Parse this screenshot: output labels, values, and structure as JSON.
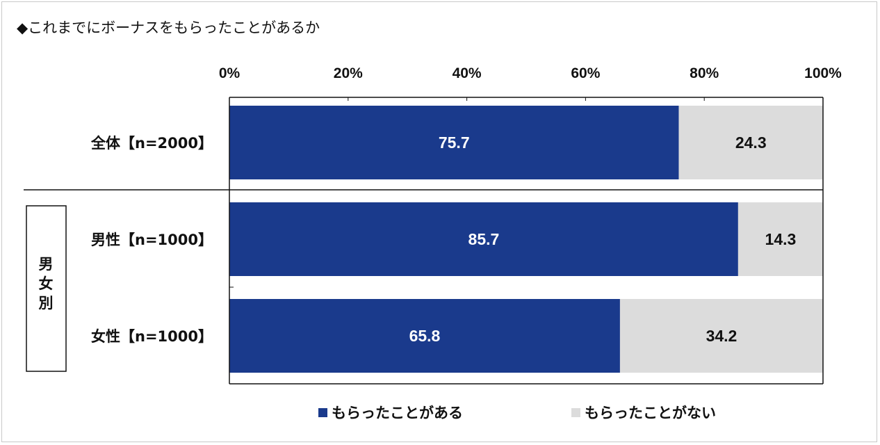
{
  "title": "◆これまでにボーナスをもらったことがあるか",
  "group_label": "男女別",
  "chart_data": {
    "type": "bar",
    "stacked": true,
    "orientation": "horizontal",
    "title": "◆これまでにボーナスをもらったことがあるか",
    "categories": [
      "全体【n=2000】",
      "男性【n=1000】",
      "女性【n=1000】"
    ],
    "xlim": [
      0,
      100
    ],
    "ticks": [
      "0%",
      "20%",
      "40%",
      "60%",
      "80%",
      "100%"
    ],
    "tick_values": [
      0,
      20,
      40,
      60,
      80,
      100
    ],
    "legend_position": "bottom",
    "series": [
      {
        "name": "もらったことがある",
        "values": [
          75.7,
          85.7,
          65.8
        ],
        "labels": [
          "75.7",
          "85.7",
          "65.8"
        ],
        "color": "#1a3a8c",
        "label_color": "#ffffff"
      },
      {
        "name": "もらったことがない",
        "values": [
          24.3,
          14.3,
          34.2
        ],
        "labels": [
          "24.3",
          "14.3",
          "34.2"
        ],
        "color": "#dcdcdc",
        "label_color": "#111111"
      }
    ]
  }
}
